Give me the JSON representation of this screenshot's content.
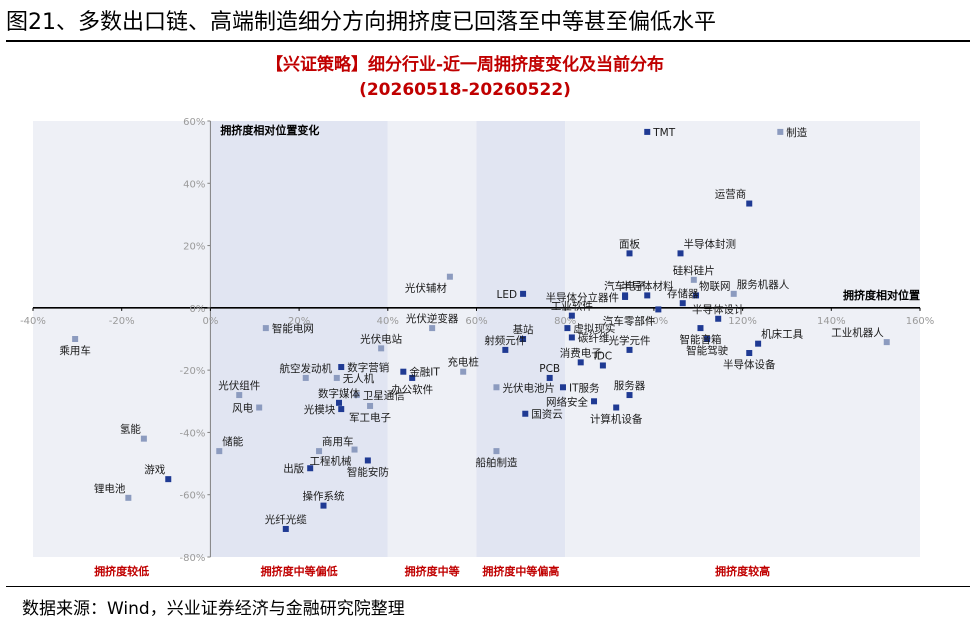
{
  "figure_title": "图21、多数出口链、高端制造细分方向拥挤度已回落至中等甚至偏低水平",
  "source": "数据来源：Wind，兴业证券经济与金融研究院整理",
  "chart_data": {
    "type": "scatter",
    "title": "【兴证策略】细分行业-近一周拥挤度变化及当前分布",
    "subtitle": "(20260518-20260522)",
    "xlabel": "拥挤度相对位置",
    "ylabel": "拥挤度相对位置变化",
    "xlim": [
      -0.4,
      1.6
    ],
    "ylim": [
      -0.8,
      0.6
    ],
    "x_ticks": [
      "-40%",
      "-20%",
      "0%",
      "20%",
      "40%",
      "60%",
      "80%",
      "100%",
      "120%",
      "140%",
      "160%"
    ],
    "y_ticks": [
      "60%",
      "40%",
      "20%",
      "0%",
      "-20%",
      "-40%",
      "-60%",
      "-80%"
    ],
    "grid": false,
    "zones": [
      {
        "label": "拥挤度较低",
        "from": -0.4,
        "to": 0.0,
        "color": "#eef0f6"
      },
      {
        "label": "拥挤度中等偏低",
        "from": 0.0,
        "to": 0.4,
        "color": "#e1e5f2"
      },
      {
        "label": "拥挤度中等",
        "from": 0.4,
        "to": 0.6,
        "color": "#eef0f6"
      },
      {
        "label": "拥挤度中等偏高",
        "from": 0.6,
        "to": 0.8,
        "color": "#e1e5f2"
      },
      {
        "label": "拥挤度较高",
        "from": 0.8,
        "to": 1.6,
        "color": "#eef0f6"
      }
    ],
    "colors": {
      "dark": "#1f3a93",
      "light": "#8c9bbf"
    },
    "points": [
      {
        "name": "TMT",
        "x": 0.985,
        "y": 0.565,
        "style": "dark",
        "pos": "r"
      },
      {
        "name": "制造",
        "x": 1.285,
        "y": 0.565,
        "style": "light",
        "pos": "r"
      },
      {
        "name": "运营商",
        "x": 1.215,
        "y": 0.335,
        "style": "dark",
        "pos": "tl"
      },
      {
        "name": "面板",
        "x": 0.945,
        "y": 0.175,
        "style": "dark",
        "pos": "t"
      },
      {
        "name": "半导体封测",
        "x": 1.06,
        "y": 0.175,
        "style": "dark",
        "pos": "tr"
      },
      {
        "name": "硅料硅片",
        "x": 1.09,
        "y": 0.09,
        "style": "light",
        "pos": "t"
      },
      {
        "name": "光伏辅材",
        "x": 0.54,
        "y": 0.1,
        "style": "light",
        "pos": "bl"
      },
      {
        "name": "服务机器人",
        "x": 1.18,
        "y": 0.045,
        "style": "light",
        "pos": "tr"
      },
      {
        "name": "汽车电子",
        "x": 0.935,
        "y": 0.04,
        "style": "dark",
        "pos": "t"
      },
      {
        "name": "半导体材料",
        "x": 0.985,
        "y": 0.04,
        "style": "dark",
        "pos": "t"
      },
      {
        "name": "物联网",
        "x": 1.095,
        "y": 0.04,
        "style": "dark",
        "pos": "tr"
      },
      {
        "name": "存储器",
        "x": 1.065,
        "y": 0.015,
        "style": "dark",
        "pos": "t"
      },
      {
        "name": "LED",
        "x": 0.705,
        "y": 0.045,
        "style": "dark",
        "pos": "l"
      },
      {
        "name": "半导体分立器件",
        "x": 0.935,
        "y": 0.035,
        "style": "dark",
        "pos": "l"
      },
      {
        "name": "工业软件",
        "x": 0.815,
        "y": -0.025,
        "style": "dark",
        "pos": "t"
      },
      {
        "name": "汽车零部件",
        "x": 1.01,
        "y": -0.005,
        "style": "dark",
        "pos": "bl"
      },
      {
        "name": "光伏逆变器",
        "x": 0.5,
        "y": -0.065,
        "style": "light",
        "pos": "t"
      },
      {
        "name": "虚拟现实",
        "x": 0.805,
        "y": -0.065,
        "style": "dark",
        "pos": "r"
      },
      {
        "name": "基站",
        "x": 0.705,
        "y": -0.1,
        "style": "dark",
        "pos": "t"
      },
      {
        "name": "碳纤维",
        "x": 0.815,
        "y": -0.095,
        "style": "dark",
        "pos": "r"
      },
      {
        "name": "射频元件",
        "x": 0.665,
        "y": -0.135,
        "style": "dark",
        "pos": "t"
      },
      {
        "name": "半导体设计",
        "x": 1.145,
        "y": -0.035,
        "style": "dark",
        "pos": "t"
      },
      {
        "name": "智能音箱",
        "x": 1.105,
        "y": -0.065,
        "style": "dark",
        "pos": "b"
      },
      {
        "name": "智能驾驶",
        "x": 1.12,
        "y": -0.1,
        "style": "dark",
        "pos": "b"
      },
      {
        "name": "机床工具",
        "x": 1.235,
        "y": -0.115,
        "style": "dark",
        "pos": "tr"
      },
      {
        "name": "半导体设备",
        "x": 1.215,
        "y": -0.145,
        "style": "dark",
        "pos": "b"
      },
      {
        "name": "工业机器人",
        "x": 1.525,
        "y": -0.11,
        "style": "light",
        "pos": "tl"
      },
      {
        "name": "光学元件",
        "x": 0.945,
        "y": -0.135,
        "style": "dark",
        "pos": "t"
      },
      {
        "name": "消费电子",
        "x": 0.835,
        "y": -0.175,
        "style": "dark",
        "pos": "t"
      },
      {
        "name": "IDC",
        "x": 0.885,
        "y": -0.185,
        "style": "dark",
        "pos": "t"
      },
      {
        "name": "充电桩",
        "x": 0.57,
        "y": -0.205,
        "style": "light",
        "pos": "t"
      },
      {
        "name": "PCB",
        "x": 0.765,
        "y": -0.225,
        "style": "dark",
        "pos": "t"
      },
      {
        "name": "IT服务",
        "x": 0.795,
        "y": -0.255,
        "style": "dark",
        "pos": "r"
      },
      {
        "name": "光伏电池片",
        "x": 0.645,
        "y": -0.255,
        "style": "light",
        "pos": "r"
      },
      {
        "name": "服务器",
        "x": 0.945,
        "y": -0.28,
        "style": "dark",
        "pos": "t"
      },
      {
        "name": "网络安全",
        "x": 0.865,
        "y": -0.3,
        "style": "dark",
        "pos": "l"
      },
      {
        "name": "计算机设备",
        "x": 0.915,
        "y": -0.32,
        "style": "dark",
        "pos": "b"
      },
      {
        "name": "国资云",
        "x": 0.71,
        "y": -0.34,
        "style": "dark",
        "pos": "r"
      },
      {
        "name": "船舶制造",
        "x": 0.645,
        "y": -0.46,
        "style": "light",
        "pos": "b"
      },
      {
        "name": "乘用车",
        "x": -0.305,
        "y": -0.1,
        "style": "light",
        "pos": "b"
      },
      {
        "name": "智能电网",
        "x": 0.125,
        "y": -0.065,
        "style": "light",
        "pos": "r"
      },
      {
        "name": "光伏电站",
        "x": 0.385,
        "y": -0.13,
        "style": "light",
        "pos": "t"
      },
      {
        "name": "数字营销",
        "x": 0.295,
        "y": -0.19,
        "style": "dark",
        "pos": "r"
      },
      {
        "name": "金融IT",
        "x": 0.435,
        "y": -0.205,
        "style": "dark",
        "pos": "r"
      },
      {
        "name": "航空发动机",
        "x": 0.215,
        "y": -0.225,
        "style": "light",
        "pos": "t"
      },
      {
        "name": "无人机",
        "x": 0.285,
        "y": -0.225,
        "style": "light",
        "pos": "r"
      },
      {
        "name": "办公软件",
        "x": 0.455,
        "y": -0.225,
        "style": "dark",
        "pos": "b"
      },
      {
        "name": "光伏组件",
        "x": 0.065,
        "y": -0.28,
        "style": "light",
        "pos": "t"
      },
      {
        "name": "卫星通信",
        "x": 0.33,
        "y": -0.28,
        "style": "light",
        "pos": "r"
      },
      {
        "name": "数字媒体",
        "x": 0.29,
        "y": -0.305,
        "style": "dark",
        "pos": "t"
      },
      {
        "name": "风电",
        "x": 0.11,
        "y": -0.32,
        "style": "light",
        "pos": "l"
      },
      {
        "name": "光模块",
        "x": 0.295,
        "y": -0.325,
        "style": "dark",
        "pos": "l"
      },
      {
        "name": "军工电子",
        "x": 0.36,
        "y": -0.315,
        "style": "light",
        "pos": "b"
      },
      {
        "name": "氢能",
        "x": -0.15,
        "y": -0.42,
        "style": "light",
        "pos": "tl"
      },
      {
        "name": "储能",
        "x": 0.02,
        "y": -0.46,
        "style": "light",
        "pos": "tr"
      },
      {
        "name": "商用车",
        "x": 0.245,
        "y": -0.46,
        "style": "light",
        "pos": "tr"
      },
      {
        "name": "出版",
        "x": 0.225,
        "y": -0.515,
        "style": "dark",
        "pos": "l"
      },
      {
        "name": "工程机械",
        "x": 0.325,
        "y": -0.455,
        "style": "light",
        "pos": "bl"
      },
      {
        "name": "智能安防",
        "x": 0.355,
        "y": -0.49,
        "style": "dark",
        "pos": "b"
      },
      {
        "name": "游戏",
        "x": -0.095,
        "y": -0.55,
        "style": "dark",
        "pos": "tl"
      },
      {
        "name": "锂电池",
        "x": -0.185,
        "y": -0.61,
        "style": "light",
        "pos": "tl"
      },
      {
        "name": "操作系统",
        "x": 0.255,
        "y": -0.635,
        "style": "dark",
        "pos": "t"
      },
      {
        "name": "光纤光缆",
        "x": 0.17,
        "y": -0.71,
        "style": "dark",
        "pos": "t"
      }
    ]
  }
}
